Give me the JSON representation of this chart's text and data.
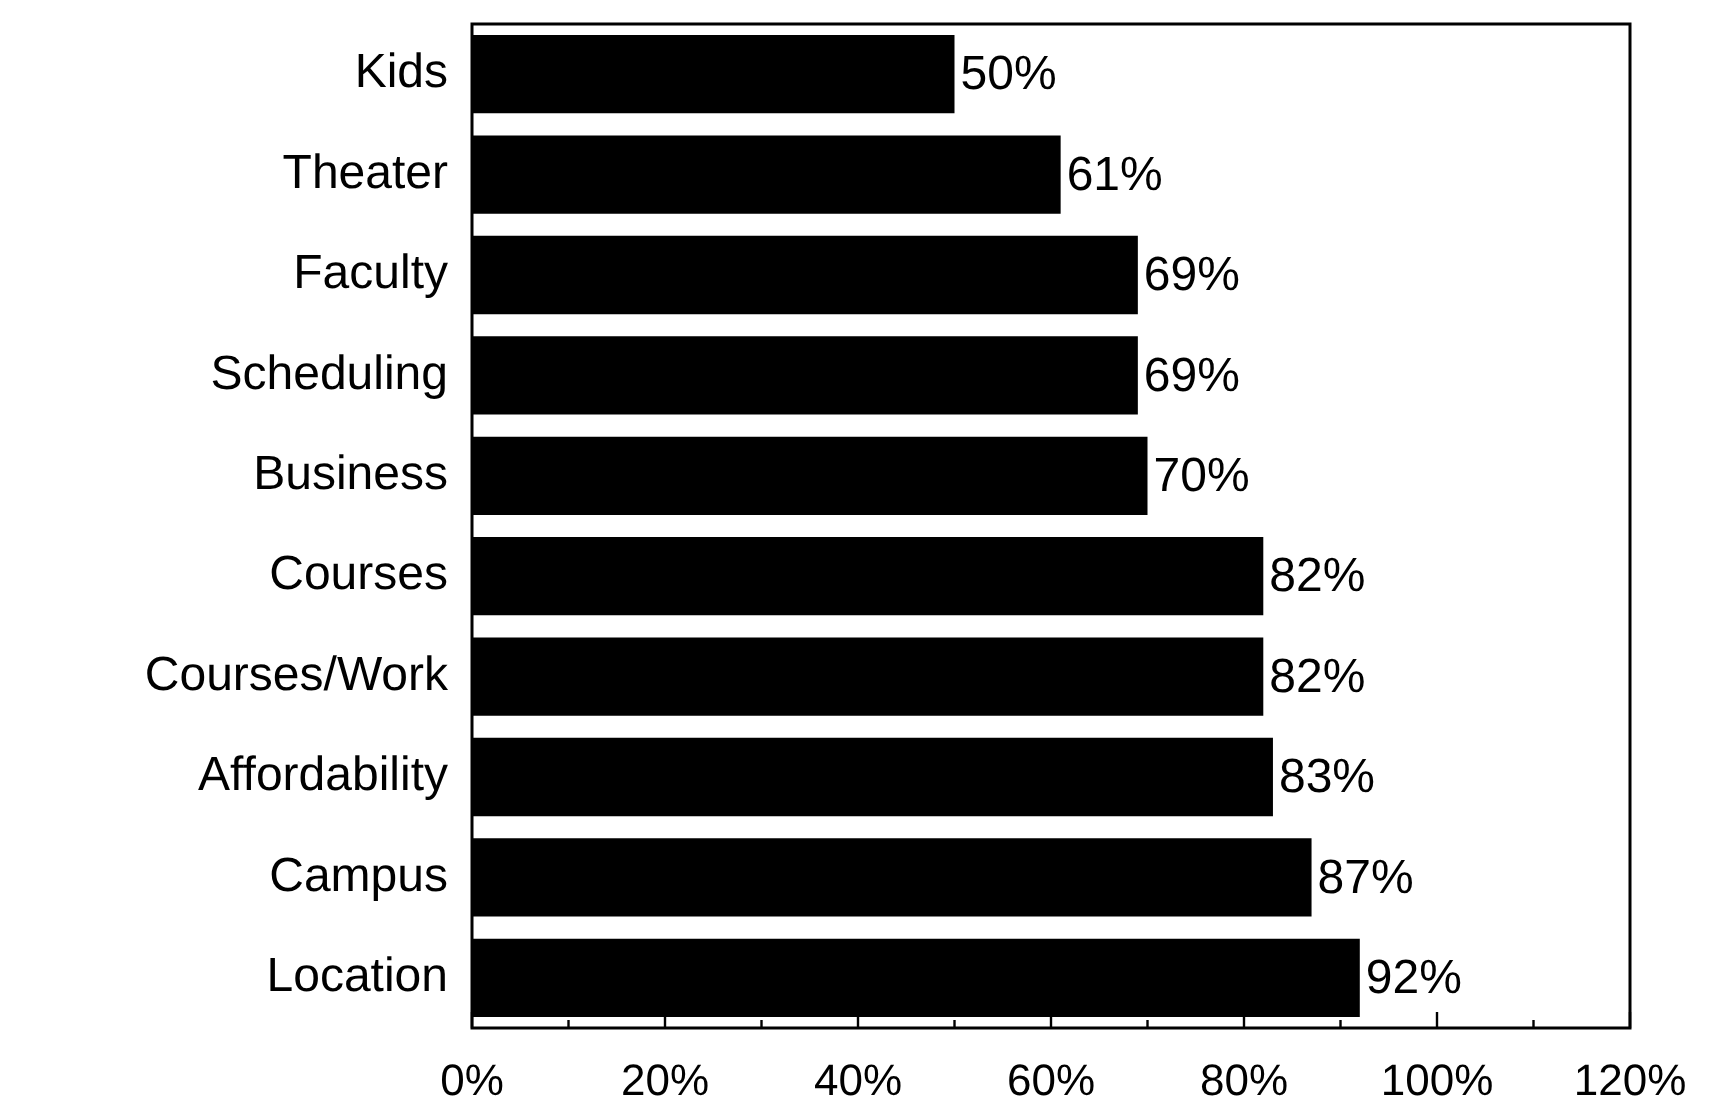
{
  "chart_data": {
    "type": "bar",
    "orientation": "horizontal",
    "categories": [
      "Kids",
      "Theater",
      "Faculty",
      "Scheduling",
      "Business",
      "Courses",
      "Courses/Work",
      "Affordability",
      "Campus",
      "Location"
    ],
    "values": [
      50,
      61,
      69,
      69,
      70,
      82,
      82,
      83,
      87,
      92
    ],
    "value_labels": [
      "50%",
      "61%",
      "69%",
      "69%",
      "70%",
      "82%",
      "82%",
      "83%",
      "87%",
      "92%"
    ],
    "color": "#000000",
    "xlim": [
      0,
      120
    ],
    "xticks": [
      {
        "value": 0,
        "label": "0%"
      },
      {
        "value": 10,
        "label": null
      },
      {
        "value": 20,
        "label": "20%"
      },
      {
        "value": 30,
        "label": null
      },
      {
        "value": 40,
        "label": "40%"
      },
      {
        "value": 50,
        "label": null
      },
      {
        "value": 60,
        "label": "60%"
      },
      {
        "value": 70,
        "label": null
      },
      {
        "value": 80,
        "label": "80%"
      },
      {
        "value": 90,
        "label": null
      },
      {
        "value": 100,
        "label": "100%"
      },
      {
        "value": 110,
        "label": null
      },
      {
        "value": 120,
        "label": "120%"
      }
    ]
  }
}
